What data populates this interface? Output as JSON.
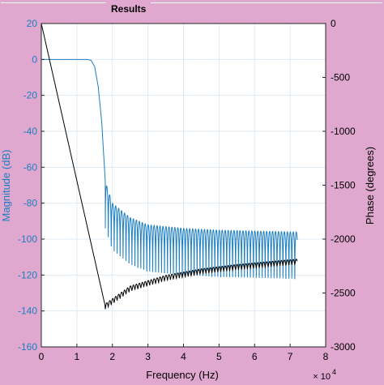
{
  "panel": {
    "title": "Results"
  },
  "chart_data": {
    "type": "line",
    "xlabel": "Frequency (Hz)",
    "x_exponent": "× 10",
    "x_exponent_power": "4",
    "ylabel_left": "Magnitude (dB)",
    "ylabel_right": "Phase (degrees)",
    "xlim": [
      0,
      8
    ],
    "ylim_left": [
      -160,
      20
    ],
    "ylim_right": [
      -3000,
      0
    ],
    "x_ticks": [
      "0",
      "1",
      "2",
      "3",
      "4",
      "5",
      "6",
      "7",
      "8"
    ],
    "y_ticks_left": [
      "20",
      "0",
      "-20",
      "-40",
      "-60",
      "-80",
      "-100",
      "-120",
      "-140",
      "-160"
    ],
    "y_ticks_right": [
      "0",
      "-500",
      "-1000",
      "-1500",
      "-2000",
      "-2500",
      "-3000"
    ],
    "grid": true,
    "colors": {
      "magnitude": "#1a7ec2",
      "phase": "#000000",
      "grid": "#dfe8f0"
    },
    "series": [
      {
        "axis": "left",
        "points": [
          [
            0,
            0
          ],
          [
            1.3,
            0
          ],
          [
            1.4,
            -0.5
          ],
          [
            1.5,
            -4
          ],
          [
            1.6,
            -15
          ],
          [
            1.7,
            -35
          ],
          [
            1.76,
            -55
          ],
          [
            1.8,
            -68
          ],
          [
            2.0,
            -80
          ],
          [
            2.5,
            -88
          ],
          [
            3.0,
            -92
          ],
          [
            4.0,
            -94
          ],
          [
            5.0,
            -95
          ],
          [
            6.0,
            -95.5
          ],
          [
            7.2,
            -96
          ]
        ]
      },
      {
        "axis": "right",
        "points": [
          [
            0,
            0
          ],
          [
            1.8,
            -2625
          ],
          [
            2.5,
            -2460
          ],
          [
            3.5,
            -2360
          ],
          [
            4.5,
            -2300
          ],
          [
            5.5,
            -2260
          ],
          [
            6.5,
            -2230
          ],
          [
            7.2,
            -2210
          ]
        ]
      }
    ]
  }
}
